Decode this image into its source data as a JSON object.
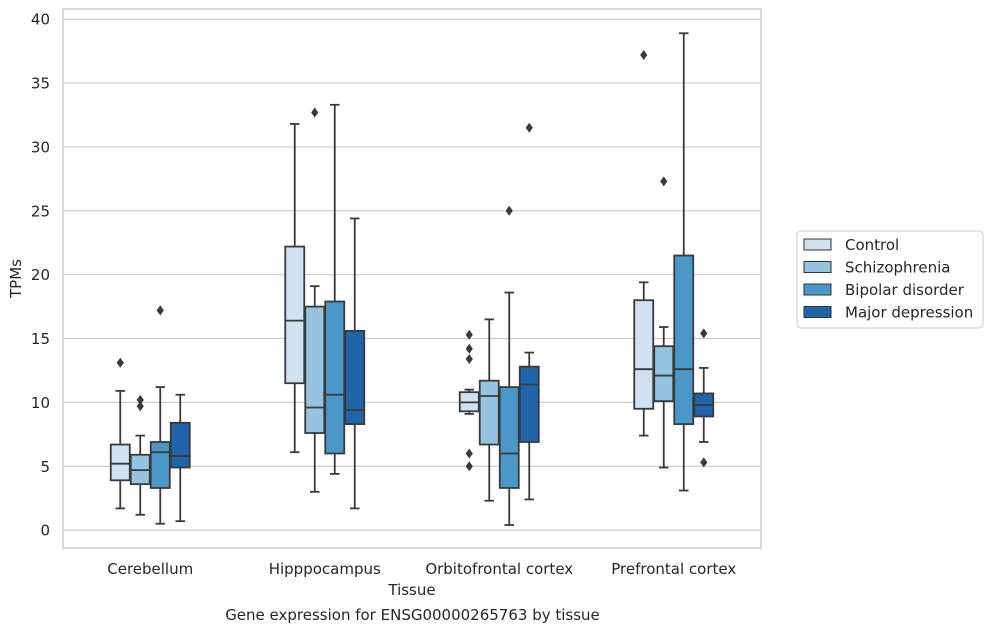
{
  "chart_data": {
    "type": "box",
    "title": "",
    "xlabel": "Tissue",
    "ylabel": "TPMs",
    "ylim": [
      -1.4,
      40.8
    ],
    "yticks": [
      0,
      5,
      10,
      15,
      20,
      25,
      30,
      35,
      40
    ],
    "grid": "horizontal",
    "legend_position": "right",
    "categories": [
      "Cerebellum",
      "Hipppocampus",
      "Orbitofrontal cortex",
      "Prefrontal cortex"
    ],
    "series": [
      {
        "name": "Control",
        "color": "#d0e1f2",
        "boxes": [
          {
            "whisker_low": 1.7,
            "q1": 3.9,
            "median": 5.2,
            "q3": 6.7,
            "whisker_high": 10.9,
            "outliers": [
              13.1
            ]
          },
          {
            "whisker_low": 6.1,
            "q1": 11.5,
            "median": 16.4,
            "q3": 22.2,
            "whisker_high": 31.8,
            "outliers": []
          },
          {
            "whisker_low": 9.1,
            "q1": 9.3,
            "median": 10.0,
            "q3": 10.8,
            "whisker_high": 11.0,
            "outliers": [
              15.3,
              14.2,
              13.4,
              6.0,
              5.0
            ]
          },
          {
            "whisker_low": 7.4,
            "q1": 9.5,
            "median": 12.6,
            "q3": 18.0,
            "whisker_high": 19.4,
            "outliers": [
              37.2
            ]
          }
        ]
      },
      {
        "name": "Schizophrenia",
        "color": "#94c4df",
        "boxes": [
          {
            "whisker_low": 1.2,
            "q1": 3.6,
            "median": 4.7,
            "q3": 5.9,
            "whisker_high": 7.4,
            "outliers": [
              10.2,
              9.7
            ]
          },
          {
            "whisker_low": 3.0,
            "q1": 7.6,
            "median": 9.6,
            "q3": 17.5,
            "whisker_high": 19.1,
            "outliers": [
              32.7
            ]
          },
          {
            "whisker_low": 2.3,
            "q1": 6.7,
            "median": 10.5,
            "q3": 11.7,
            "whisker_high": 16.5,
            "outliers": []
          },
          {
            "whisker_low": 4.9,
            "q1": 10.1,
            "median": 12.1,
            "q3": 14.4,
            "whisker_high": 15.9,
            "outliers": [
              27.3
            ]
          }
        ]
      },
      {
        "name": "Bipolar disorder",
        "color": "#4a98c9",
        "boxes": [
          {
            "whisker_low": 0.5,
            "q1": 3.3,
            "median": 6.1,
            "q3": 6.9,
            "whisker_high": 11.2,
            "outliers": [
              17.2
            ]
          },
          {
            "whisker_low": 4.4,
            "q1": 6.0,
            "median": 10.6,
            "q3": 17.9,
            "whisker_high": 33.3,
            "outliers": []
          },
          {
            "whisker_low": 0.4,
            "q1": 3.3,
            "median": 6.0,
            "q3": 11.2,
            "whisker_high": 18.6,
            "outliers": [
              25.0
            ]
          },
          {
            "whisker_low": 3.1,
            "q1": 8.3,
            "median": 12.6,
            "q3": 21.5,
            "whisker_high": 38.9,
            "outliers": []
          }
        ]
      },
      {
        "name": "Major depression",
        "color": "#2064aa",
        "boxes": [
          {
            "whisker_low": 0.7,
            "q1": 4.9,
            "median": 5.8,
            "q3": 8.4,
            "whisker_high": 10.6,
            "outliers": []
          },
          {
            "whisker_low": 1.7,
            "q1": 8.3,
            "median": 9.4,
            "q3": 15.6,
            "whisker_high": 24.4,
            "outliers": []
          },
          {
            "whisker_low": 2.4,
            "q1": 6.9,
            "median": 11.4,
            "q3": 12.8,
            "whisker_high": 13.9,
            "outliers": [
              31.5
            ]
          },
          {
            "whisker_low": 6.9,
            "q1": 8.9,
            "median": 9.8,
            "q3": 10.7,
            "whisker_high": 12.7,
            "outliers": [
              15.4,
              5.3
            ]
          }
        ]
      }
    ]
  },
  "caption": "Gene expression for ENSG00000265763 by tissue"
}
